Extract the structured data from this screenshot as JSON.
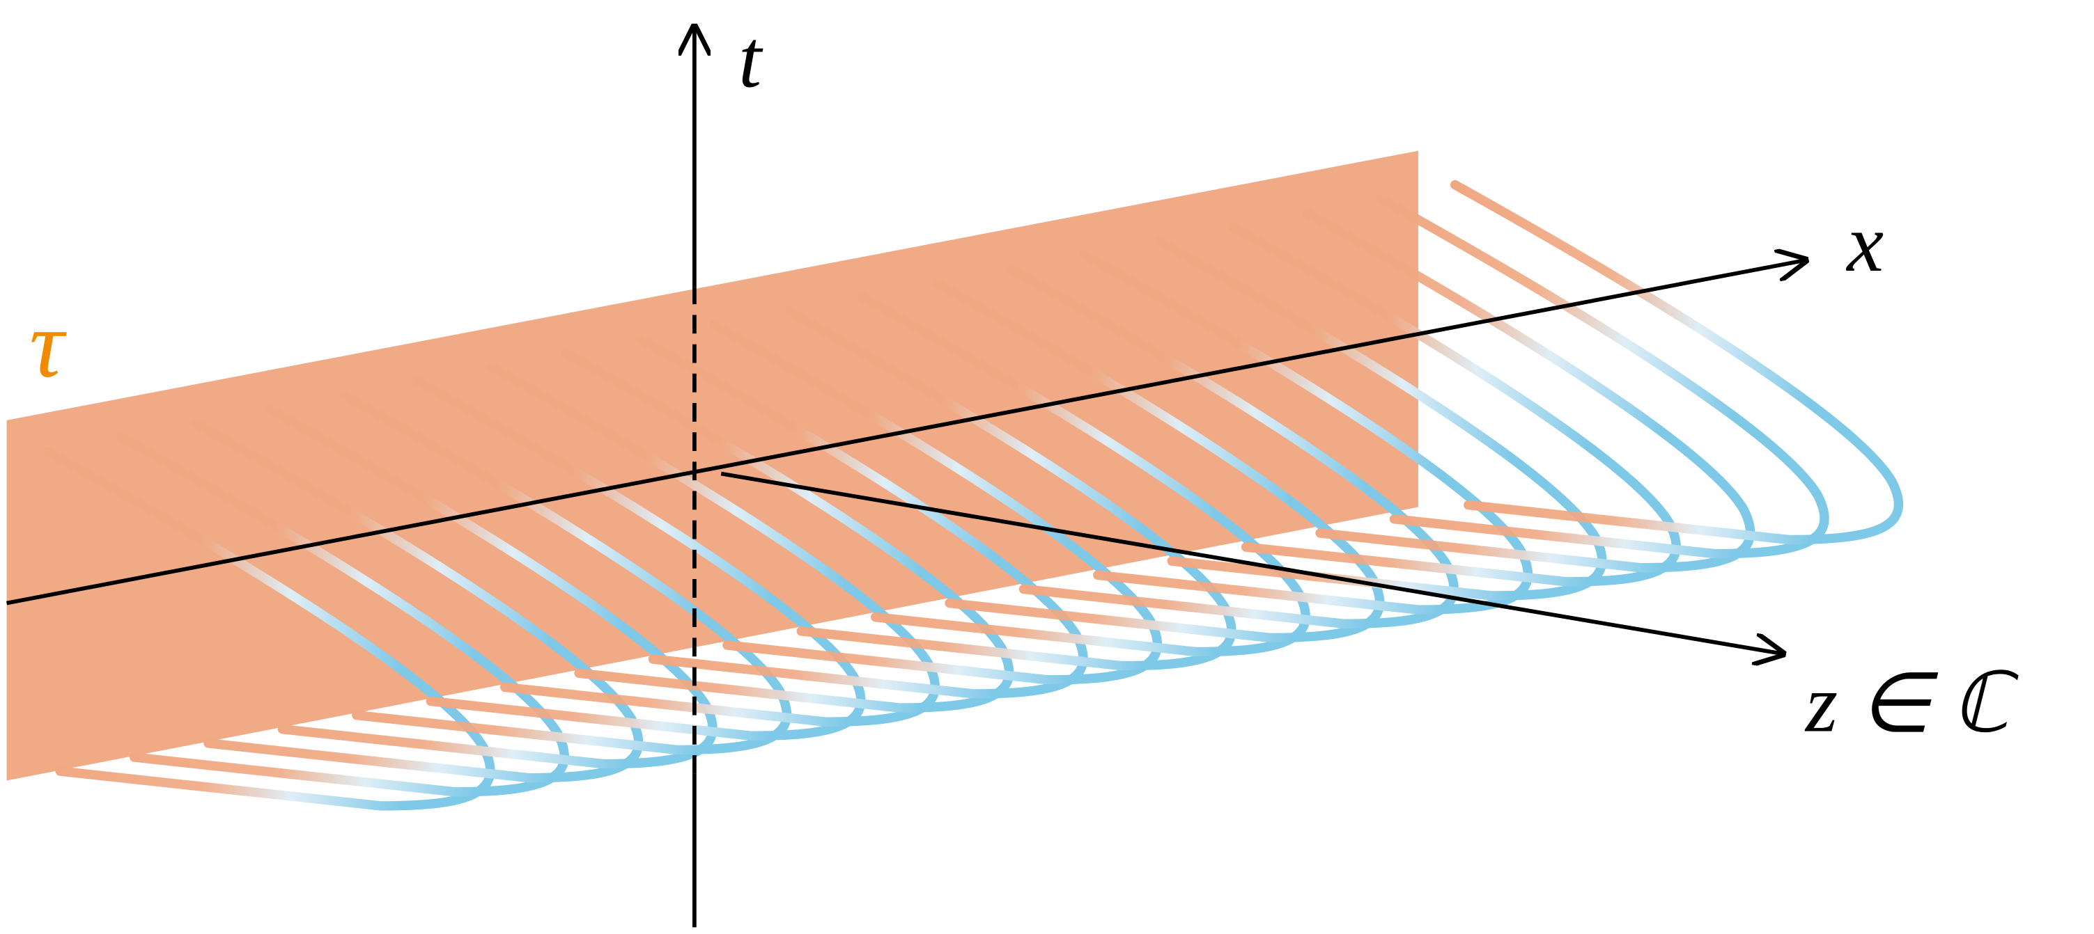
{
  "axes": {
    "t": "t",
    "x": "x",
    "z": "z ∈ ℂ"
  },
  "region": {
    "label": "τ"
  }
}
